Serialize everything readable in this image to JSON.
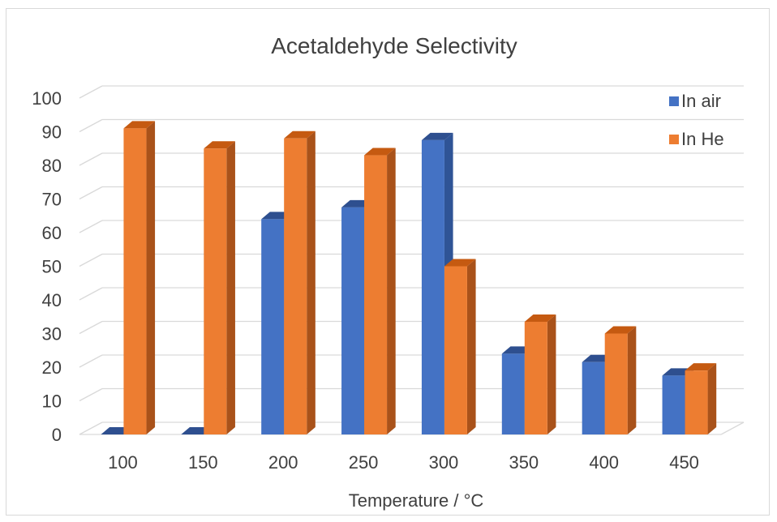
{
  "chart_data": {
    "type": "bar",
    "title": "Acetaldehyde Selectivity",
    "xlabel": "Temperature / °C",
    "ylabel": "",
    "categories": [
      "100",
      "150",
      "200",
      "250",
      "300",
      "350",
      "400",
      "450"
    ],
    "series": [
      {
        "name": "In air",
        "values": [
          0,
          0,
          64,
          67.5,
          87.5,
          24,
          21.5,
          17.5
        ]
      },
      {
        "name": "In He",
        "values": [
          91,
          85,
          88,
          83,
          50,
          33.5,
          30,
          19
        ]
      }
    ],
    "ylim": [
      0,
      100
    ],
    "yticks": [
      "0",
      "10",
      "20",
      "30",
      "40",
      "50",
      "60",
      "70",
      "80",
      "90",
      "100"
    ],
    "grid": true,
    "legend": "top-right",
    "style": "3d-clustered-column",
    "colors": {
      "In air": {
        "front": "#4472c4",
        "side": "#2f5496",
        "top": "#2e4f8f"
      },
      "In He": {
        "front": "#ed7d31",
        "side": "#a9521a",
        "top": "#c55a11"
      },
      "grid": "#d9d9d9",
      "text": "#404040"
    }
  }
}
